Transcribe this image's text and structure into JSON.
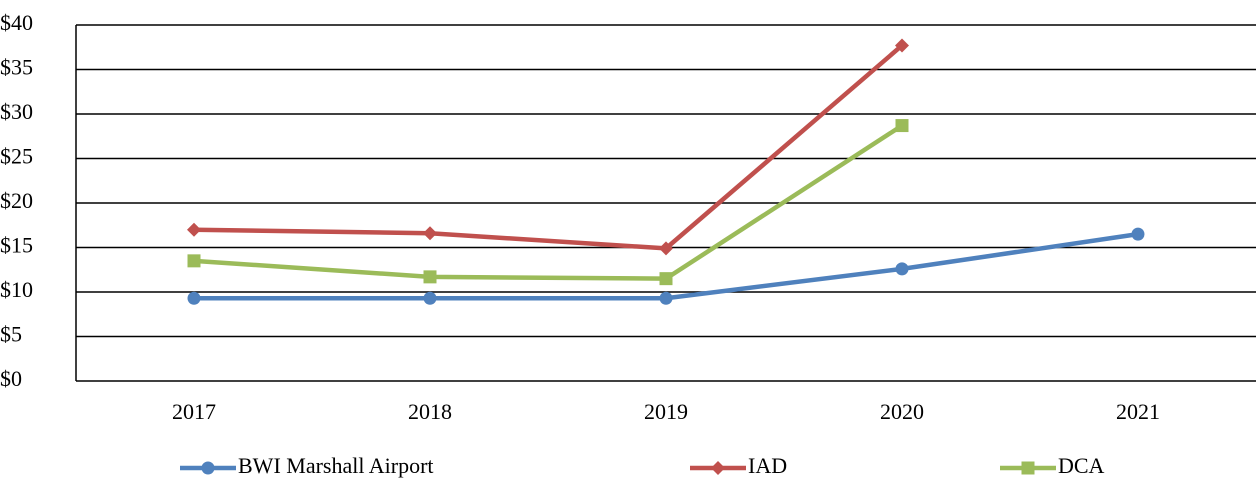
{
  "chart_data": {
    "type": "line",
    "categories": [
      "2017",
      "2018",
      "2019",
      "2020",
      "2021"
    ],
    "series": [
      {
        "name": "BWI Marshall Airport",
        "color": "#4f81bd",
        "marker": "circle",
        "values": [
          9.3,
          9.3,
          9.3,
          12.6,
          16.5
        ]
      },
      {
        "name": "IAD",
        "color": "#c0504d",
        "marker": "diamond",
        "values": [
          17.0,
          16.6,
          14.9,
          37.7,
          null
        ]
      },
      {
        "name": "DCA",
        "color": "#9bbb59",
        "marker": "square",
        "values": [
          13.5,
          11.7,
          11.5,
          28.7,
          null
        ]
      }
    ],
    "ylim": [
      0,
      40
    ],
    "yticks": [
      {
        "value": 0,
        "label": "$0"
      },
      {
        "value": 5,
        "label": "$5"
      },
      {
        "value": 10,
        "label": "$10"
      },
      {
        "value": 15,
        "label": "$15"
      },
      {
        "value": 20,
        "label": "$20"
      },
      {
        "value": 25,
        "label": "$25"
      },
      {
        "value": 30,
        "label": "$30"
      },
      {
        "value": 35,
        "label": "$35"
      },
      {
        "value": 40,
        "label": "$40"
      }
    ],
    "grid": true,
    "legend": "bottom"
  }
}
